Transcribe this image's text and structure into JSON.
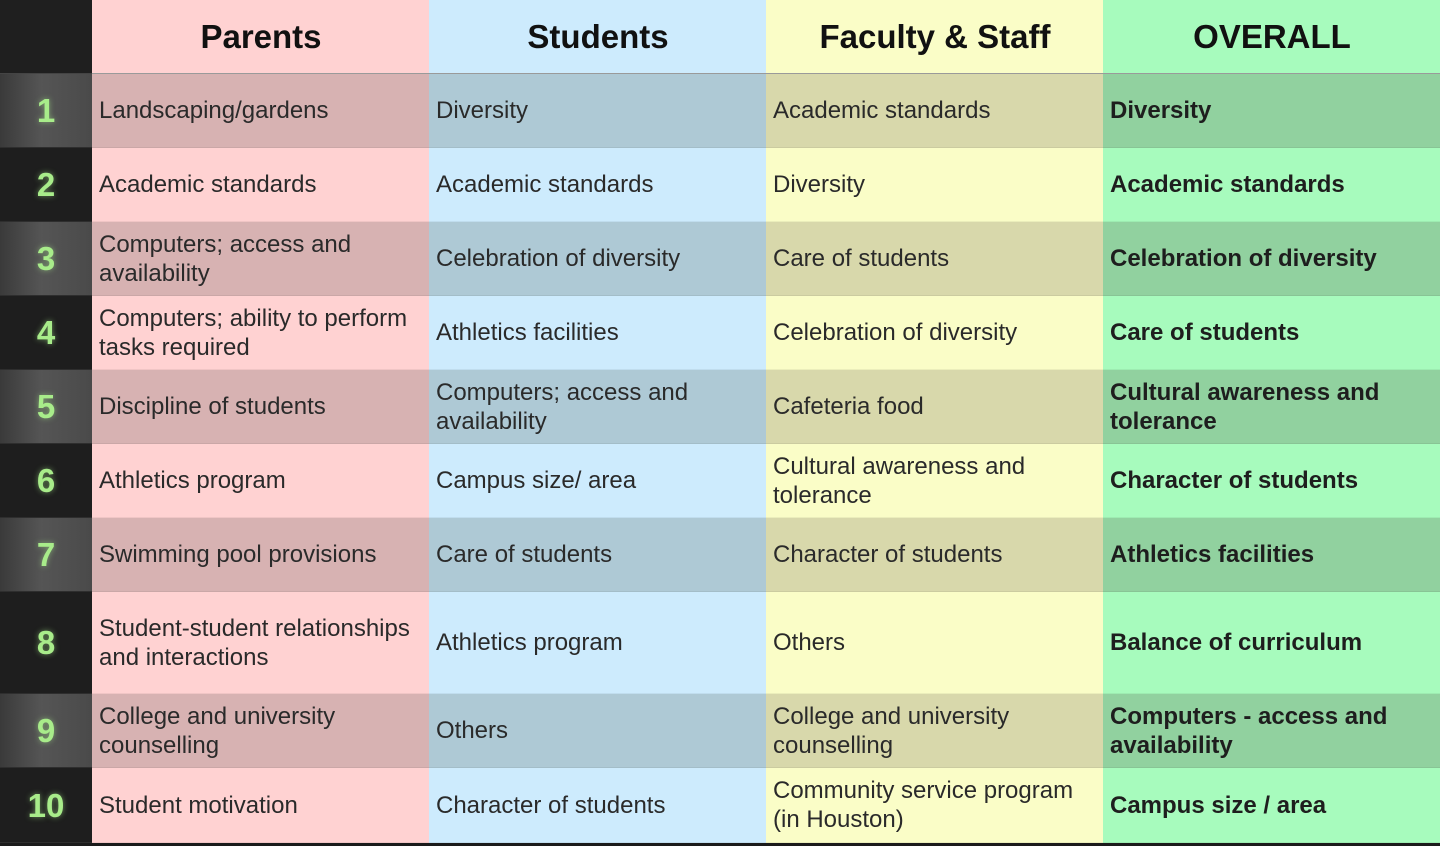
{
  "headers": [
    "Parents",
    "Students",
    "Faculty & Staff",
    "OVERALL"
  ],
  "colors": {
    "columns": [
      "#ffd2d2",
      "#cdebfd",
      "#fafdc7",
      "#a7fbbd"
    ],
    "columns_shaded": [
      "#d7b2b2",
      "#aec9d5",
      "#d8d8ab",
      "#91d19f"
    ],
    "rank_text": "#a8ec8a"
  },
  "rows": [
    {
      "rank": "1",
      "parents": "Landscaping/gardens",
      "students": "Diversity",
      "faculty": "Academic standards",
      "overall": "Diversity"
    },
    {
      "rank": "2",
      "parents": "Academic standards",
      "students": "Academic standards",
      "faculty": "Diversity",
      "overall": "Academic standards"
    },
    {
      "rank": "3",
      "parents": "Computers; access and availability",
      "students": "Celebration of diversity",
      "faculty": "Care of students",
      "overall": "Celebration of diversity"
    },
    {
      "rank": "4",
      "parents": "Computers; ability to perform tasks required",
      "students": "Athletics facilities",
      "faculty": "Celebration of diversity",
      "overall": "Care of students"
    },
    {
      "rank": "5",
      "parents": "Discipline of students",
      "students": "Computers; access and availability",
      "faculty": "Cafeteria food",
      "overall": "Cultural awareness and tolerance"
    },
    {
      "rank": "6",
      "parents": "Athletics program",
      "students": "Campus size/ area",
      "faculty": "Cultural awareness and tolerance",
      "overall": "Character of students"
    },
    {
      "rank": "7",
      "parents": "Swimming pool provisions",
      "students": "Care of students",
      "faculty": "Character of students",
      "overall": "Athletics facilities"
    },
    {
      "rank": "8",
      "parents": "Student-student relationships and interactions",
      "students": "Athletics program",
      "faculty": "Others",
      "overall": "Balance of curriculum"
    },
    {
      "rank": "9",
      "parents": "College and university counselling",
      "students": "Others",
      "faculty": "College and university counselling",
      "overall": "Computers - access and availability"
    },
    {
      "rank": "10",
      "parents": "Student motivation",
      "students": "Character of students",
      "faculty": "Community service program (in Houston)",
      "overall": "Campus size / area"
    }
  ]
}
